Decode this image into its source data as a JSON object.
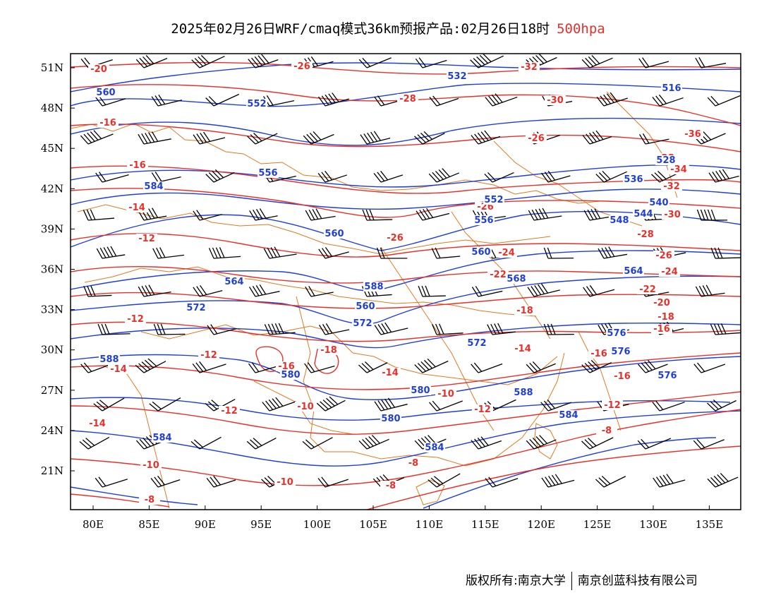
{
  "title": {
    "main": "2025年02月26日WRF/cmaq模式36km预报产品:02月26日18时",
    "level": "500hpa"
  },
  "axes": {
    "lat_labels": [
      "51N",
      "48N",
      "45N",
      "42N",
      "39N",
      "36N",
      "33N",
      "30N",
      "27N",
      "24N",
      "21N"
    ],
    "lon_labels": [
      "80E",
      "85E",
      "90E",
      "95E",
      "100E",
      "105E",
      "110E",
      "115E",
      "120E",
      "125E",
      "130E",
      "135E"
    ]
  },
  "colors": {
    "temperature": "#e8302a",
    "height": "#1f3fd6",
    "borders": "#e07a1e",
    "wind": "#000000"
  },
  "temperature_labels": [
    "-20",
    "-26",
    "-32",
    "-28",
    "-30",
    "-16",
    "-26",
    "-36",
    "-16",
    "-28",
    "-34",
    "-32",
    "-14",
    "-26",
    "-30",
    "-12",
    "-26",
    "-28",
    "-24",
    "-26",
    "-24",
    "-22",
    "-22",
    "-20",
    "-12",
    "-18",
    "-18",
    "-16",
    "-18",
    "-12",
    "-16",
    "-14",
    "-14",
    "-16",
    "-14",
    "-16",
    "-12",
    "-10",
    "-14",
    "-12",
    "-10",
    "-12",
    "-8",
    "-10",
    "-10",
    "-8",
    "-8",
    "-8"
  ],
  "height_labels": [
    "560",
    "552",
    "532",
    "516",
    "528",
    "584",
    "556",
    "536",
    "552",
    "544",
    "540",
    "556",
    "548",
    "560",
    "560",
    "564",
    "588",
    "564",
    "568",
    "560",
    "572",
    "572",
    "588",
    "576",
    "572",
    "576",
    "580",
    "580",
    "576",
    "588",
    "580",
    "584",
    "584",
    "584"
  ],
  "footer": {
    "owner": "版权所有:南京大学",
    "company": "南京创蓝科技有限公司"
  }
}
